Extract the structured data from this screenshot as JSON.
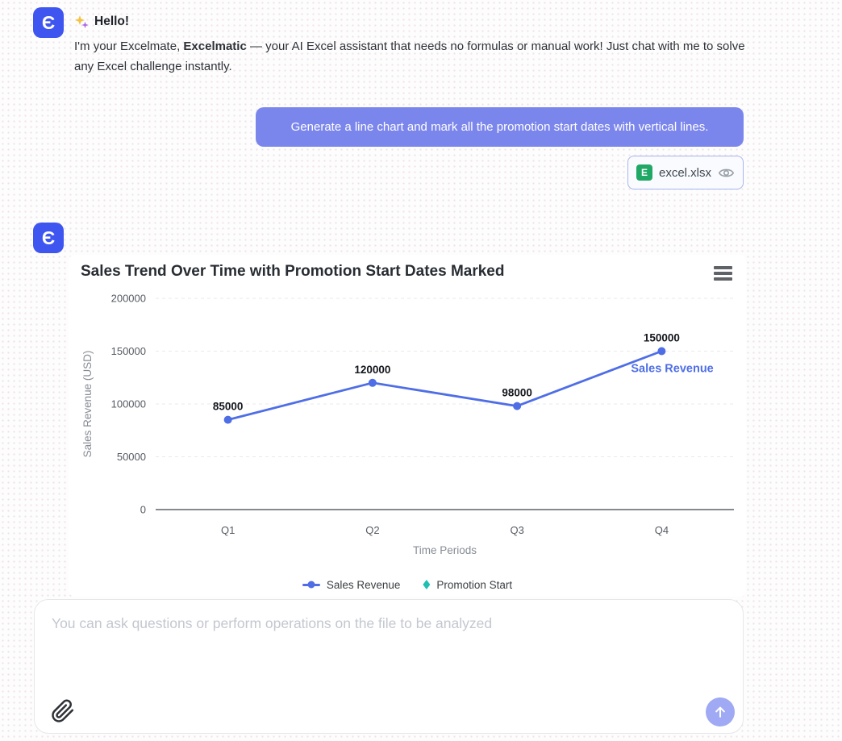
{
  "assistant": {
    "avatar_glyph": "Є",
    "greeting": "Hello!",
    "intro_prefix": "I'm your Excelmate, ",
    "intro_bold": "Excelmatic",
    "intro_suffix": " — your AI Excel assistant that needs no formulas or manual work! Just chat with me to solve any Excel challenge instantly."
  },
  "user_message": {
    "text": "Generate a line chart and mark all the promotion start dates with vertical lines.",
    "attachment": {
      "file_name": "excel.xlsx",
      "icon_letter": "E",
      "icons": [
        "excel-file-icon",
        "eye-icon"
      ]
    }
  },
  "chart_card": {
    "menu_icon": "hamburger-menu-icon"
  },
  "chart_data": {
    "type": "line",
    "title": "Sales Trend Over Time with Promotion Start Dates Marked",
    "categories": [
      "Q1",
      "Q2",
      "Q3",
      "Q4"
    ],
    "series": [
      {
        "name": "Sales Revenue",
        "values": [
          85000,
          120000,
          98000,
          150000
        ],
        "color": "#4f6ee6"
      }
    ],
    "series_end_label": "Sales Revenue",
    "xlabel": "Time Periods",
    "ylabel": "Sales Revenue (USD)",
    "ylim": [
      0,
      200000
    ],
    "yticks": [
      0,
      50000,
      100000,
      150000,
      200000
    ],
    "grid": "dashed-horizontal",
    "legend_position": "bottom-center",
    "legend": [
      {
        "label": "Sales Revenue",
        "marker": "line-dot",
        "color": "#4f6ee6"
      },
      {
        "label": "Promotion Start",
        "marker": "diamond",
        "color": "#1fc0b1"
      }
    ]
  },
  "composer": {
    "placeholder": "You can ask questions or perform operations on the file to be analyzed",
    "attach_icon": "paperclip-icon",
    "send_icon": "arrow-up-icon"
  },
  "colors": {
    "avatar_blue": "#3e55f0",
    "bubble_blue": "#7b86ed",
    "line_blue": "#4f6ee6",
    "promo_teal": "#1fc0b1",
    "excel_green": "#21a867",
    "send_button_blue": "#9fa9f4"
  }
}
